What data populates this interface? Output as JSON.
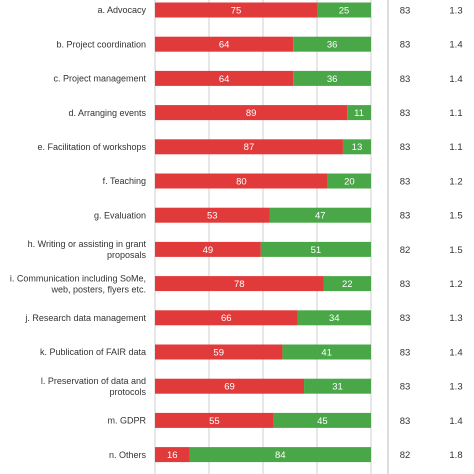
{
  "chart_data": {
    "type": "bar",
    "orientation": "horizontal",
    "stacked": true,
    "percent_scale": true,
    "xlim": [
      0,
      100
    ],
    "grid": true,
    "series_colors": [
      "#e03a3a",
      "#4aa748"
    ],
    "categories": [
      "a. Advocacy",
      "b. Project coordination",
      "c. Project management",
      "d. Arranging events",
      "e. Facilitation of workshops",
      "f. Teaching",
      "g. Evaluation",
      "h. Writing or assisting in grant proposals",
      "i. Communication including SoMe, web, posters, flyers etc.",
      "j. Research data management",
      "k. Publication of FAIR data",
      "l. Preservation of data and protocols",
      "m. GDPR",
      "n. Others"
    ],
    "category_lines": [
      [
        "a. Advocacy"
      ],
      [
        "b. Project coordination"
      ],
      [
        "c. Project management"
      ],
      [
        "d. Arranging events"
      ],
      [
        "e. Facilitation of workshops"
      ],
      [
        "f. Teaching"
      ],
      [
        "g. Evaluation"
      ],
      [
        "h. Writing or assisting in grant",
        "proposals"
      ],
      [
        "i. Communication including SoMe,",
        "web, posters, flyers etc."
      ],
      [
        "j. Research data management"
      ],
      [
        "k. Publication of FAIR data"
      ],
      [
        "l. Preservation of data and",
        "protocols"
      ],
      [
        "m. GDPR"
      ],
      [
        "n. Others"
      ]
    ],
    "series": [
      {
        "values": [
          75,
          64,
          64,
          89,
          87,
          80,
          53,
          49,
          78,
          66,
          59,
          69,
          55,
          16
        ]
      },
      {
        "values": [
          25,
          36,
          36,
          11,
          13,
          20,
          47,
          51,
          22,
          34,
          41,
          31,
          45,
          84
        ]
      }
    ],
    "n": [
      83,
      83,
      83,
      83,
      83,
      83,
      83,
      82,
      83,
      83,
      83,
      83,
      83,
      82
    ],
    "extra": [
      "1.3",
      "1.4",
      "1.4",
      "1.1",
      "1.1",
      "1.2",
      "1.5",
      "1.5",
      "1.2",
      "1.3",
      "1.4",
      "1.3",
      "1.4",
      "1.8"
    ]
  }
}
